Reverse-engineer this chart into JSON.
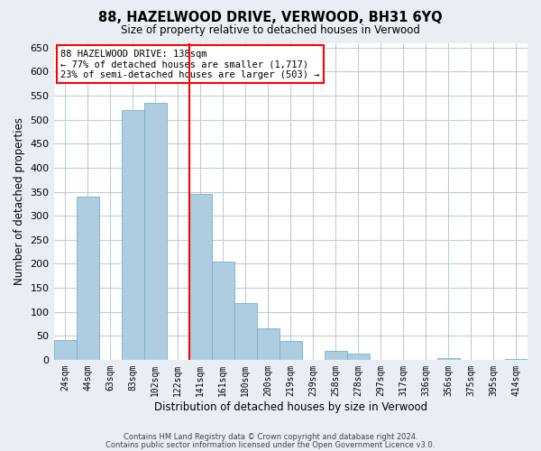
{
  "title": "88, HAZELWOOD DRIVE, VERWOOD, BH31 6YQ",
  "subtitle": "Size of property relative to detached houses in Verwood",
  "xlabel": "Distribution of detached houses by size in Verwood",
  "ylabel": "Number of detached properties",
  "bin_labels": [
    "24sqm",
    "44sqm",
    "63sqm",
    "83sqm",
    "102sqm",
    "122sqm",
    "141sqm",
    "161sqm",
    "180sqm",
    "200sqm",
    "219sqm",
    "239sqm",
    "258sqm",
    "278sqm",
    "297sqm",
    "317sqm",
    "336sqm",
    "356sqm",
    "375sqm",
    "395sqm",
    "414sqm"
  ],
  "bar_heights": [
    41,
    340,
    0,
    520,
    535,
    0,
    345,
    205,
    118,
    65,
    39,
    0,
    19,
    12,
    0,
    0,
    0,
    3,
    0,
    0,
    2
  ],
  "bar_color": "#aecde0",
  "bar_edgecolor": "#7aafc8",
  "vline_position": 6,
  "vline_color": "red",
  "ylim": [
    0,
    660
  ],
  "yticks": [
    0,
    50,
    100,
    150,
    200,
    250,
    300,
    350,
    400,
    450,
    500,
    550,
    600,
    650
  ],
  "annotation_title": "88 HAZELWOOD DRIVE: 138sqm",
  "annotation_line1": "← 77% of detached houses are smaller (1,717)",
  "annotation_line2": "23% of semi-detached houses are larger (503) →",
  "annotation_box_facecolor": "white",
  "annotation_box_edgecolor": "red",
  "footer1": "Contains HM Land Registry data © Crown copyright and database right 2024.",
  "footer2": "Contains public sector information licensed under the Open Government Licence v3.0.",
  "fig_facecolor": "#e8eef4",
  "plot_facecolor": "white",
  "grid_color": "#c0cdd8"
}
